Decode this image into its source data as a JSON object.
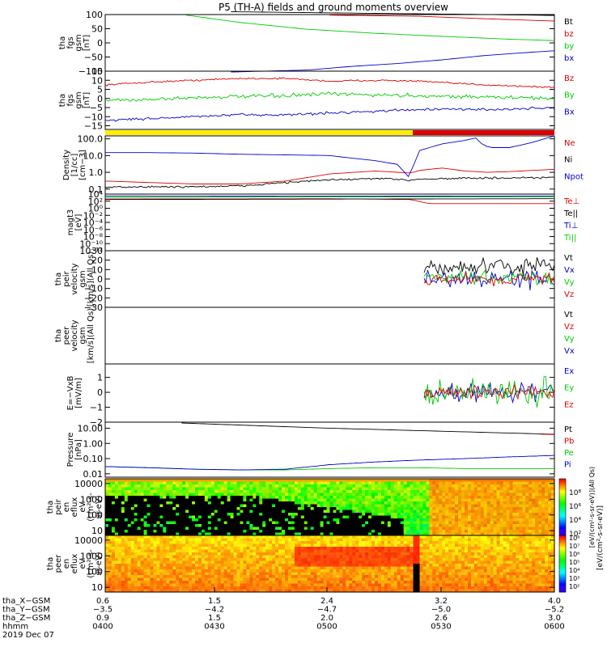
{
  "title": "P5 (TH-A) fields and ground moments overview",
  "colors": {
    "black": "#000000",
    "red": "#dd0000",
    "green": "#00cc00",
    "blue": "#0000cc",
    "yellow": "#ffee00"
  },
  "chart_data": [
    {
      "type": "line",
      "id": "p1",
      "ylabel": [
        "tha",
        "fgs",
        "gsm",
        "[nT]"
      ],
      "ylim": [
        -100,
        100
      ],
      "yticks": [
        {
          "v": 100,
          "t": "100"
        },
        {
          "v": 50,
          "t": "50"
        },
        {
          "v": 0,
          "t": "0"
        },
        {
          "v": -50,
          "t": "−50"
        },
        {
          "v": -100,
          "t": "−100"
        }
      ],
      "series": [
        {
          "name": "Bt",
          "color": "black",
          "x": [
            0.28,
            0.5,
            0.8,
            1.0
          ],
          "y": [
            110,
            106,
            101,
            97
          ]
        },
        {
          "name": "bz",
          "color": "red",
          "x": [
            0.5,
            0.7,
            0.85,
            1.0
          ],
          "y": [
            98,
            94,
            85,
            77
          ]
        },
        {
          "name": "by",
          "color": "green",
          "x": [
            0.18,
            0.3,
            0.45,
            0.6,
            0.75,
            0.9,
            1.0
          ],
          "y": [
            98,
            72,
            48,
            34,
            23,
            13,
            8
          ]
        },
        {
          "name": "bx",
          "color": "blue",
          "x": [
            0.28,
            0.45,
            0.55,
            0.65,
            0.75,
            0.85,
            0.92,
            1.0
          ],
          "y": [
            -103,
            -96,
            -83,
            -73,
            -60,
            -44,
            -36,
            -28
          ]
        }
      ]
    },
    {
      "type": "line",
      "id": "p2",
      "ylabel": [
        "tha",
        "fgs",
        "gsm",
        "[nT]"
      ],
      "ylim": [
        -17,
        15
      ],
      "yticks": [
        {
          "v": 15,
          "t": "15"
        },
        {
          "v": 10,
          "t": "10"
        },
        {
          "v": 5,
          "t": "5"
        },
        {
          "v": 0,
          "t": "0"
        },
        {
          "v": -5,
          "t": "−5"
        },
        {
          "v": -10,
          "t": "−10"
        },
        {
          "v": -15,
          "t": "−15"
        }
      ],
      "series": [
        {
          "name": "Bz",
          "color": "red",
          "x": [
            0,
            0.1,
            0.2,
            0.3,
            0.4,
            0.5,
            0.6,
            0.7,
            0.8,
            0.9,
            1.0
          ],
          "y": [
            7.5,
            9,
            10,
            11,
            11,
            9.5,
            10,
            9.5,
            8,
            7,
            6
          ],
          "noise": 0.4
        },
        {
          "name": "By",
          "color": "green",
          "x": [
            0,
            0.1,
            0.2,
            0.3,
            0.4,
            0.5,
            0.6,
            0.7,
            0.8,
            0.9,
            1.0
          ],
          "y": [
            -1,
            -0.5,
            0.5,
            1,
            1.5,
            2.5,
            2,
            1.5,
            1,
            0.5,
            0
          ],
          "noise": 0.9
        },
        {
          "name": "Bx",
          "color": "blue",
          "x": [
            0,
            0.1,
            0.2,
            0.3,
            0.4,
            0.5,
            0.6,
            0.7,
            0.8,
            0.9,
            1.0
          ],
          "y": [
            -12,
            -11,
            -10,
            -9,
            -9,
            -8,
            -7,
            -6,
            -6,
            -6,
            -5
          ],
          "noise": 0.6
        }
      ]
    },
    {
      "type": "line",
      "id": "p3",
      "ylabel": [
        "Density",
        "[1/cc]",
        "[cm−3]"
      ],
      "ylog": true,
      "ylim": [
        0.05,
        150
      ],
      "yticks": [
        {
          "v": 100,
          "t": "100.0"
        },
        {
          "v": 10,
          "t": "10.0"
        },
        {
          "v": 1,
          "t": "1.0"
        },
        {
          "v": 0.1,
          "t": "0.1"
        }
      ],
      "series": [
        {
          "name": "Ne",
          "color": "red",
          "x": [
            0,
            0.2,
            0.3,
            0.4,
            0.5,
            0.6,
            0.68,
            0.7,
            0.75,
            0.8,
            0.85,
            0.9,
            0.95,
            1.0
          ],
          "y": [
            0.3,
            0.2,
            0.2,
            0.3,
            0.8,
            1.2,
            0.9,
            1.3,
            1.8,
            1.2,
            1.0,
            1.1,
            1.3,
            1.5
          ]
        },
        {
          "name": "Ni",
          "color": "black",
          "x": [
            0,
            0.2,
            0.3,
            0.4,
            0.5,
            0.6,
            0.68,
            0.7,
            0.8,
            0.9,
            1.0
          ],
          "y": [
            0.13,
            0.14,
            0.15,
            0.25,
            0.35,
            0.42,
            0.35,
            0.4,
            0.45,
            0.45,
            0.48
          ],
          "noise": 0.04
        },
        {
          "name": "Npot",
          "color": "blue",
          "x": [
            0,
            0.1,
            0.2,
            0.3,
            0.4,
            0.5,
            0.55,
            0.6,
            0.65,
            0.68,
            0.69,
            0.7,
            0.75,
            0.8,
            0.83,
            0.84,
            0.86,
            0.9,
            0.95,
            1.0
          ],
          "y": [
            15,
            15,
            14,
            12,
            11,
            10,
            7,
            5,
            3,
            0.4,
            6,
            20,
            50,
            80,
            120,
            40,
            30,
            30,
            60,
            150
          ]
        }
      ]
    },
    {
      "type": "line",
      "id": "p4",
      "ylabel": [
        "magt3",
        "[eV]"
      ],
      "ylog": true,
      "ylim": [
        1e-12,
        10000.0
      ],
      "yticks": [
        {
          "v": 10000.0,
          "t": "10⁴"
        },
        {
          "v": 100.0,
          "t": "10²"
        },
        {
          "v": 1.0,
          "t": "10⁰"
        },
        {
          "v": 0.01,
          "t": "10⁻²"
        },
        {
          "v": 0.0001,
          "t": "10⁻⁴"
        },
        {
          "v": 1e-06,
          "t": "10⁻⁶"
        },
        {
          "v": 1e-08,
          "t": "10⁻⁸"
        },
        {
          "v": 1e-10,
          "t": "10⁻¹⁰"
        },
        {
          "v": 1e-12,
          "t": "10⁻¹²"
        }
      ],
      "series": [
        {
          "name": "Te⊥",
          "color": "red",
          "x": [
            0,
            0.5,
            0.68,
            0.72,
            1.0
          ],
          "y": [
            400,
            500,
            300,
            20,
            20
          ]
        },
        {
          "name": "Te||",
          "color": "black",
          "x": [
            0,
            1.0
          ],
          "y": [
            300,
            500
          ]
        },
        {
          "name": "Ti⊥",
          "color": "blue",
          "x": [
            0,
            0.5,
            1.0
          ],
          "y": [
            3000,
            2500,
            3000
          ]
        },
        {
          "name": "Ti||",
          "color": "green",
          "x": [
            0,
            0.5,
            1.0
          ],
          "y": [
            1200,
            1500,
            1500
          ]
        }
      ]
    },
    {
      "type": "line",
      "id": "p5",
      "ylabel": [
        "tha",
        "peir",
        "velocity",
        "gsm",
        "[km/s](All Qs)"
      ],
      "ylim": [
        -30,
        30
      ],
      "yticks": [
        {
          "v": 30,
          "t": "30"
        },
        {
          "v": 20,
          "t": "20"
        },
        {
          "v": 10,
          "t": "10"
        },
        {
          "v": 0,
          "t": "0"
        },
        {
          "v": -10,
          "t": "−10"
        },
        {
          "v": -20,
          "t": "−20"
        },
        {
          "v": -30,
          "t": "−30"
        }
      ],
      "series": [
        {
          "name": "Vt",
          "color": "black",
          "x": [
            0.71,
            1.0
          ],
          "y": [
            12,
            14
          ],
          "noise": 7
        },
        {
          "name": "Vx",
          "color": "blue",
          "x": [
            0.71,
            1.0
          ],
          "y": [
            0,
            0
          ],
          "noise": 8
        },
        {
          "name": "Vy",
          "color": "green",
          "x": [
            0.71,
            1.0
          ],
          "y": [
            1,
            1
          ],
          "noise": 6
        },
        {
          "name": "Vz",
          "color": "red",
          "x": [
            0.71,
            1.0
          ],
          "y": [
            0,
            0
          ],
          "noise": 6
        }
      ]
    },
    {
      "type": "line",
      "id": "p6",
      "ylabel": [
        "tha",
        "peer",
        "velocity",
        "gsm",
        "[km/s](All Qs)"
      ],
      "ylim": [
        -30,
        30
      ],
      "yticks": [],
      "series": [
        {
          "name": "Vt",
          "color": "black",
          "x": [],
          "y": []
        },
        {
          "name": "Vz",
          "color": "red",
          "x": [],
          "y": []
        },
        {
          "name": "Vy",
          "color": "green",
          "x": [],
          "y": []
        },
        {
          "name": "Vx",
          "color": "blue",
          "x": [],
          "y": []
        }
      ]
    },
    {
      "type": "line",
      "id": "p7",
      "ylabel": [
        "E=−VxB",
        "[mV/m]"
      ],
      "ylim": [
        -2,
        1.9
      ],
      "yticks": [
        {
          "v": 1,
          "t": "1"
        },
        {
          "v": 0,
          "t": "0"
        },
        {
          "v": -1,
          "t": "−1"
        },
        {
          "v": -2,
          "t": "−2"
        }
      ],
      "series": [
        {
          "name": "Ex",
          "color": "blue",
          "x": [
            0.71,
            1.0
          ],
          "y": [
            0,
            0
          ],
          "noise": 0.5
        },
        {
          "name": "Ey",
          "color": "green",
          "x": [
            0.71,
            1.0
          ],
          "y": [
            0,
            0
          ],
          "noise": 0.8
        },
        {
          "name": "Ez",
          "color": "red",
          "x": [
            0.71,
            1.0
          ],
          "y": [
            0,
            0
          ],
          "noise": 0.35
        }
      ]
    },
    {
      "type": "line",
      "id": "p8",
      "ylabel": [
        "Pressure",
        "[nPa]"
      ],
      "ylog": true,
      "ylim": [
        0.006,
        25
      ],
      "yticks": [
        {
          "v": 10,
          "t": "10.00"
        },
        {
          "v": 1,
          "t": "1.00"
        },
        {
          "v": 0.1,
          "t": "0.10"
        },
        {
          "v": 0.01,
          "t": "0.01"
        }
      ],
      "series": [
        {
          "name": "Pt",
          "color": "black",
          "x": [
            0.17,
            0.5,
            1.0
          ],
          "y": [
            22,
            10,
            4
          ]
        },
        {
          "name": "Pb",
          "color": "red",
          "x": [
            0.97,
            1.0
          ],
          "y": [
            4,
            3.8
          ]
        },
        {
          "name": "Pe",
          "color": "green",
          "x": [
            0,
            0.1,
            0.2,
            0.3,
            0.4,
            0.5,
            0.6,
            0.7,
            0.8,
            0.9,
            1.0
          ],
          "y": [
            0.03,
            0.025,
            0.02,
            0.018,
            0.018,
            0.022,
            0.025,
            0.025,
            0.022,
            0.022,
            0.022
          ]
        },
        {
          "name": "Pi",
          "color": "blue",
          "x": [
            0,
            0.1,
            0.2,
            0.3,
            0.4,
            0.5,
            0.6,
            0.7,
            0.8,
            0.9,
            1.0
          ],
          "y": [
            0.03,
            0.025,
            0.02,
            0.018,
            0.02,
            0.04,
            0.06,
            0.08,
            0.1,
            0.13,
            0.16
          ],
          "noise": 0.004
        }
      ]
    },
    {
      "type": "heatmap",
      "id": "p9",
      "ylabel": [
        "tha",
        "peir",
        "en",
        "eflux",
        "eV",
        "(cm²-s-",
        "sr-eV)"
      ],
      "ylog": true,
      "ylim": [
        5,
        20000
      ],
      "yticks": [
        {
          "v": 10000,
          "t": "10000"
        },
        {
          "v": 1000,
          "t": "1000"
        },
        {
          "v": 100,
          "t": "100"
        },
        {
          "v": 10,
          "t": "10"
        }
      ]
    },
    {
      "type": "heatmap",
      "id": "p10",
      "ylabel": [
        "tha",
        "peer",
        "en",
        "eflux",
        "eV",
        "(cm²-s-",
        "sr-eV)"
      ],
      "ylog": true,
      "ylim": [
        5,
        20000
      ],
      "yticks": [
        {
          "v": 10000,
          "t": "10000"
        },
        {
          "v": 1000,
          "t": "1000"
        },
        {
          "v": 100,
          "t": "100"
        },
        {
          "v": 10,
          "t": "10"
        }
      ]
    }
  ],
  "colorbar": {
    "label": "[eV/(cm²-s-sr-eV)]",
    "label_top": "[eV/(cm²-s-sr-eV)](All Qs)",
    "ticks_top": [
      "10⁸",
      "10⁶",
      "10⁴",
      "10²"
    ],
    "ticks_bottom": [
      "10⁸",
      "10⁷",
      "10⁶",
      "10⁵",
      "10⁴",
      "10³",
      "10²"
    ]
  },
  "xaxis": {
    "rows": [
      {
        "label": "tha_X−GSM",
        "values": [
          "0.6",
          "1.5",
          "2.4",
          "3.2",
          "4.0"
        ]
      },
      {
        "label": "tha_Y−GSM",
        "values": [
          "−3.5",
          "−4.2",
          "−4.7",
          "−5.0",
          "−5.2"
        ]
      },
      {
        "label": "tha_Z−GSM",
        "values": [
          "0.9",
          "1.5",
          "2.0",
          "2.6",
          "3.0"
        ]
      },
      {
        "label": "hhmm",
        "values": [
          "0400",
          "0430",
          "0500",
          "0530",
          "0600"
        ]
      }
    ],
    "date": "2019 Dec 07"
  }
}
